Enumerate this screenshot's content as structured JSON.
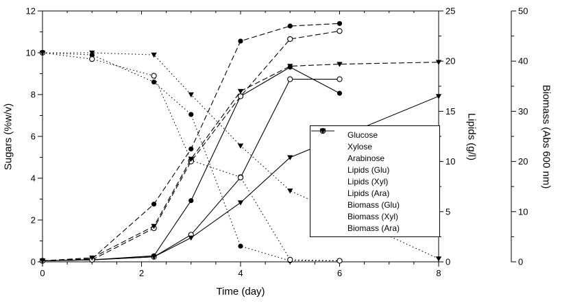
{
  "figure": {
    "background": "#ffffff",
    "axis_color": "#000000",
    "series_color": "#000000"
  },
  "chart_data": {
    "type": "line",
    "title": "",
    "legend_position": "inside-right",
    "grid": false,
    "x_axis": {
      "label": "Time (day)",
      "min": 0,
      "max": 8,
      "major_ticks": [
        0,
        2,
        4,
        6,
        8
      ],
      "minor_ticks": [
        0.5,
        1,
        1.5,
        2.5,
        3,
        3.5,
        4.5,
        5,
        5.5,
        6.5,
        7,
        7.5
      ]
    },
    "y_left": {
      "label": "Sugars (%w/v)",
      "min": 0,
      "max": 12,
      "major_ticks": [
        0,
        2,
        4,
        6,
        8,
        10,
        12
      ],
      "minor_ticks": [
        1,
        3,
        5,
        7,
        9,
        11
      ]
    },
    "y_lipids": {
      "label": "Lipids (g/l)",
      "min": 0,
      "max": 25,
      "major_ticks": [
        0,
        5,
        10,
        15,
        20,
        25
      ],
      "minor_ticks": [
        2.5,
        7.5,
        12.5,
        17.5,
        22.5
      ]
    },
    "y_biomass": {
      "label": "Biomass (Abs 600 nm)",
      "min": 0,
      "max": 50,
      "major_ticks": [
        0,
        10,
        20,
        30,
        40,
        50
      ],
      "minor_ticks": [
        5,
        15,
        25,
        35,
        45
      ]
    },
    "series": [
      {
        "name": "Glucose",
        "axis": "sugars",
        "line": "dotted",
        "marker": "circle-filled",
        "x": [
          0,
          1,
          2.25,
          3,
          4,
          5,
          6
        ],
        "y": [
          10.0,
          9.9,
          8.6,
          7.05,
          0.75,
          0.05,
          0.05
        ]
      },
      {
        "name": "Xylose",
        "axis": "sugars",
        "line": "dotted",
        "marker": "circle-open",
        "x": [
          0,
          1,
          2.25,
          3,
          4,
          5,
          6
        ],
        "y": [
          10.0,
          9.7,
          8.9,
          4.85,
          4.05,
          0.1,
          0.05
        ]
      },
      {
        "name": "Arabinose",
        "axis": "sugars",
        "line": "dotted",
        "marker": "triangle-filled",
        "x": [
          0,
          1,
          2.25,
          3,
          4,
          5,
          8
        ],
        "y": [
          10.0,
          10.0,
          9.9,
          8.0,
          5.55,
          3.4,
          0.15
        ]
      },
      {
        "name": "Lipids (Glu)",
        "axis": "lipids",
        "line": "solid",
        "marker": "circle-filled",
        "x": [
          0,
          1,
          2.25,
          3,
          4,
          5,
          6
        ],
        "y": [
          0.1,
          0.2,
          0.6,
          6.1,
          16.5,
          19.4,
          16.8
        ]
      },
      {
        "name": "Lipids (Xyl)",
        "axis": "lipids",
        "line": "solid",
        "marker": "circle-open",
        "x": [
          0,
          1,
          2.25,
          3,
          4,
          5,
          6
        ],
        "y": [
          0.1,
          0.2,
          0.5,
          2.7,
          8.4,
          18.2,
          18.2
        ]
      },
      {
        "name": "Lipids (Ara)",
        "axis": "lipids",
        "line": "solid",
        "marker": "triangle-filled",
        "x": [
          0,
          1,
          2.25,
          3,
          4,
          5,
          8
        ],
        "y": [
          0.1,
          0.2,
          0.5,
          2.4,
          5.9,
          10.4,
          16.5
        ]
      },
      {
        "name": "Biomass (Glu)",
        "axis": "biomass",
        "line": "dashed",
        "marker": "circle-filled",
        "x": [
          0,
          1,
          2.25,
          3,
          4,
          5,
          6
        ],
        "y": [
          0.2,
          0.6,
          11.5,
          22.5,
          44.0,
          47.0,
          47.5
        ]
      },
      {
        "name": "Biomass (Xyl)",
        "axis": "biomass",
        "line": "dashed",
        "marker": "circle-open",
        "x": [
          0,
          1,
          2.25,
          3,
          4,
          5,
          6
        ],
        "y": [
          0.2,
          0.4,
          6.7,
          20.0,
          33.0,
          44.4,
          46.0
        ]
      },
      {
        "name": "Biomass (Ara)",
        "axis": "biomass",
        "line": "dashed",
        "marker": "triangle-filled",
        "x": [
          0,
          1,
          2.25,
          3,
          4,
          5,
          6,
          8
        ],
        "y": [
          0.2,
          0.8,
          7.1,
          20.5,
          34.0,
          39.0,
          39.4,
          39.8
        ]
      }
    ]
  }
}
